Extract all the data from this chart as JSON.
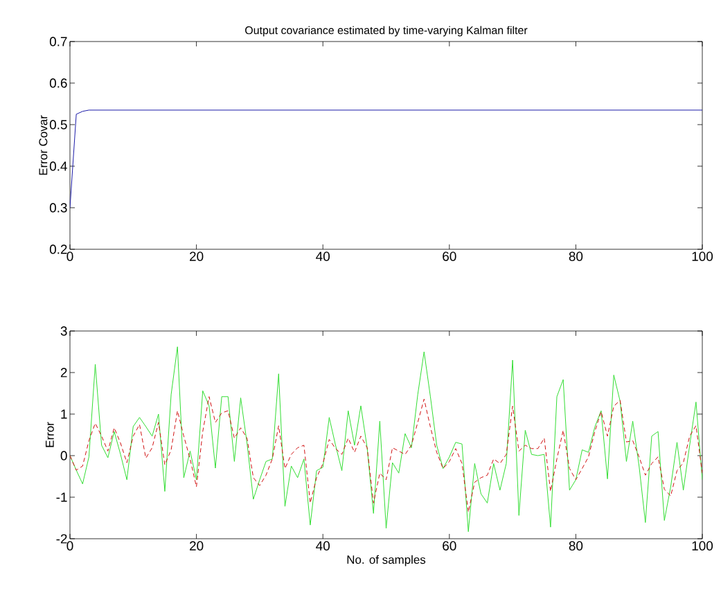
{
  "chart_data": [
    {
      "type": "line",
      "title": "Output covariance estimated by time-varying Kalman filter",
      "ylabel": "Error Covar",
      "xlim": [
        0,
        100
      ],
      "ylim": [
        0.2,
        0.7
      ],
      "xticks": [
        0,
        20,
        40,
        60,
        80,
        100
      ],
      "yticks": [
        0.2,
        0.3,
        0.4,
        0.5,
        0.6,
        0.7
      ],
      "x": [
        0,
        1,
        2,
        3,
        100
      ],
      "series": [
        {
          "color": "#1a1aa8",
          "values": [
            0.3,
            0.525,
            0.532,
            0.535,
            0.535
          ]
        }
      ]
    },
    {
      "type": "line",
      "xlabel": "No. of samples",
      "ylabel": "Error",
      "xlim": [
        0,
        100
      ],
      "ylim": [
        -2,
        3
      ],
      "xticks": [
        0,
        20,
        40,
        60,
        80,
        100
      ],
      "yticks": [
        -2,
        -1,
        0,
        1,
        2,
        3
      ],
      "x": [
        0,
        1,
        2,
        3,
        4,
        5,
        6,
        7,
        8,
        9,
        10,
        11,
        12,
        13,
        14,
        15,
        16,
        17,
        18,
        19,
        20,
        21,
        22,
        23,
        24,
        25,
        26,
        27,
        28,
        29,
        30,
        31,
        32,
        33,
        34,
        35,
        36,
        37,
        38,
        39,
        40,
        41,
        42,
        43,
        44,
        45,
        46,
        47,
        48,
        49,
        50,
        51,
        52,
        53,
        54,
        55,
        56,
        57,
        58,
        59,
        60,
        61,
        62,
        63,
        64,
        65,
        66,
        67,
        68,
        69,
        70,
        71,
        72,
        73,
        74,
        75,
        76,
        77,
        78,
        79,
        80,
        81,
        82,
        83,
        84,
        85,
        86,
        87,
        88,
        89,
        90,
        91,
        92,
        93,
        94,
        95,
        96,
        97,
        98,
        99,
        100
      ],
      "series": [
        {
          "color": "#33dd33",
          "line_style": "solid",
          "values": [
            0,
            -0.35,
            -0.68,
            -0.03,
            2.2,
            0.25,
            -0.05,
            0.58,
            0.03,
            -0.58,
            0.7,
            0.92,
            0.7,
            0.47,
            1.0,
            -0.86,
            1.47,
            2.62,
            -0.53,
            0.11,
            -0.58,
            1.56,
            1.2,
            -0.3,
            1.42,
            1.42,
            -0.14,
            1.39,
            0.3,
            -1.05,
            -0.58,
            -0.14,
            -0.08,
            1.97,
            -1.22,
            -0.25,
            -0.53,
            -0.08,
            -1.67,
            -0.36,
            -0.28,
            0.92,
            0.25,
            -0.36,
            1.08,
            0.25,
            1.2,
            0.19,
            -1.39,
            0.83,
            -1.75,
            -0.17,
            -0.42,
            0.53,
            0.19,
            1.47,
            2.5,
            1.42,
            0.25,
            -0.31,
            -0.03,
            0.32,
            0.28,
            -1.83,
            -0.19,
            -0.92,
            -1.14,
            -0.19,
            -0.83,
            -0.19,
            2.3,
            -1.44,
            0.61,
            0.03,
            0,
            0.03,
            -1.72,
            1.42,
            1.83,
            -0.83,
            -0.58,
            0.14,
            0.08,
            0.69,
            1.08,
            -0.56,
            1.94,
            1.31,
            -0.14,
            0.83,
            -0.25,
            -1.61,
            0.47,
            0.58,
            -1.56,
            -0.75,
            0.32,
            -0.83,
            0.25,
            1.29,
            -0.58
          ]
        },
        {
          "color": "#d01010",
          "line_style": "dashed",
          "values": [
            0,
            -0.35,
            -0.25,
            0.36,
            0.78,
            0.47,
            0.11,
            0.67,
            0.3,
            -0.17,
            0.47,
            0.75,
            -0.06,
            0.19,
            0.8,
            -0.22,
            0.14,
            1.08,
            0.47,
            -0.08,
            -0.75,
            0.58,
            1.42,
            0.8,
            1.03,
            1.08,
            0.42,
            0.67,
            0.42,
            -0.53,
            -0.72,
            -0.47,
            -0.08,
            0.72,
            -0.31,
            0.03,
            0.19,
            0.25,
            -1.14,
            -0.53,
            -0.19,
            0.39,
            0.17,
            0.03,
            0.42,
            0.08,
            0.47,
            0.19,
            -1.14,
            -0.42,
            -0.58,
            0.19,
            0.11,
            0.03,
            0.25,
            0.8,
            1.36,
            0.69,
            0.08,
            -0.31,
            -0.14,
            0.17,
            -0.19,
            -1.36,
            -0.64,
            -0.53,
            -0.47,
            -0.08,
            -0.19,
            0.03,
            1.19,
            0.11,
            0.25,
            0.17,
            0.17,
            0.42,
            -0.86,
            -0.08,
            0.61,
            -0.31,
            -0.58,
            -0.31,
            -0.03,
            0.58,
            1.06,
            0.47,
            1.19,
            1.33,
            0.33,
            0.36,
            -0.03,
            -0.47,
            -0.19,
            -0.03,
            -0.81,
            -0.97,
            -0.36,
            -0.17,
            0.47,
            0.72,
            -0.42
          ]
        }
      ]
    }
  ]
}
